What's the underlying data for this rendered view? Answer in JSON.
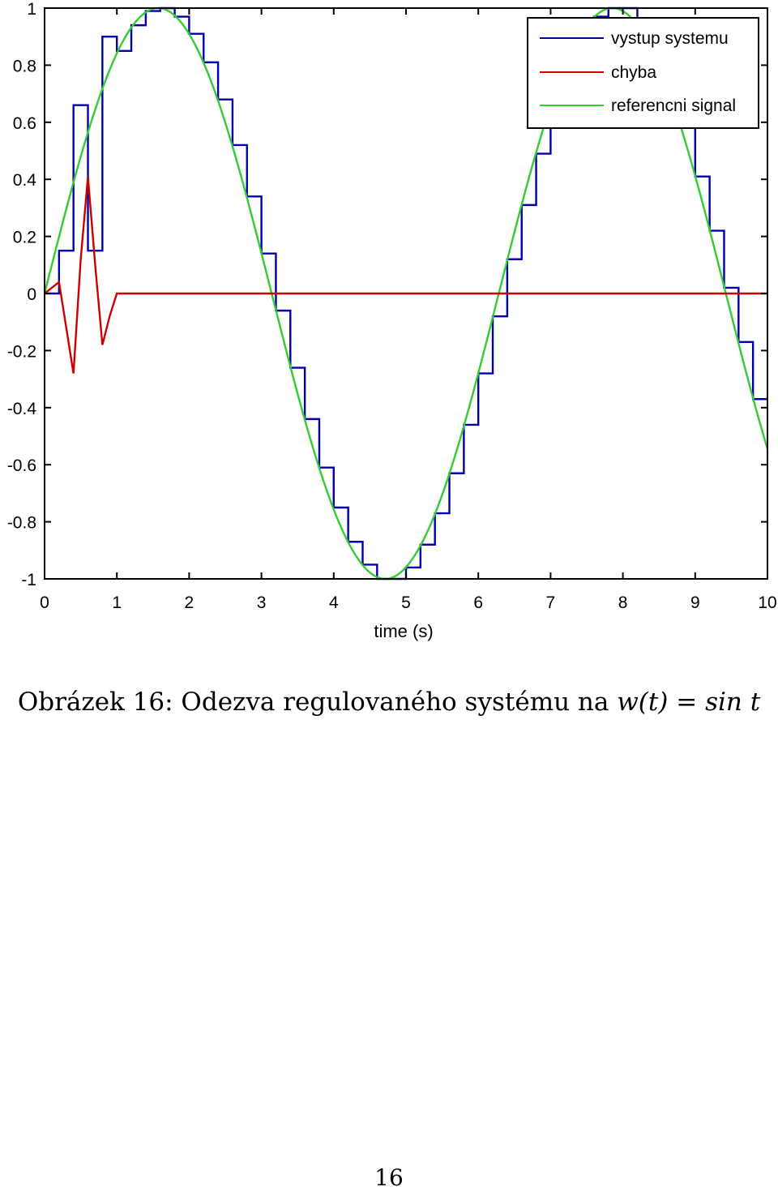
{
  "chart_data": {
    "type": "line",
    "title": "",
    "xlabel": "time (s)",
    "ylabel": "",
    "xlim": [
      0,
      10
    ],
    "ylim": [
      -1,
      1
    ],
    "x_ticks": [
      0,
      1,
      2,
      3,
      4,
      5,
      6,
      7,
      8,
      9,
      10
    ],
    "y_ticks": [
      1,
      0.8,
      0.6,
      0.4,
      0.2,
      0,
      -0.2,
      -0.4,
      -0.6,
      -0.8,
      -1
    ],
    "x_tick_labels": [
      "0",
      "1",
      "2",
      "3",
      "4",
      "5",
      "6",
      "7",
      "8",
      "9",
      "10"
    ],
    "y_tick_labels": [
      "1",
      "0.8",
      "0.6",
      "0.4",
      "0.2",
      "0",
      "-0.2",
      "-0.4",
      "-0.6",
      "-0.8",
      "-1"
    ],
    "grid": false,
    "legend_position": "top-right",
    "series": [
      {
        "name": "vystup systemu",
        "color": "#0000aa",
        "style": "step",
        "x": [
          0,
          0.2,
          0.4,
          0.6,
          0.8,
          1.0,
          1.2,
          1.4,
          1.6,
          1.8,
          2.0,
          2.2,
          2.4,
          2.6,
          2.8,
          3.0,
          3.2,
          3.4,
          3.6,
          3.8,
          4.0,
          4.2,
          4.4,
          4.6,
          4.8,
          5.0,
          5.2,
          5.4,
          5.6,
          5.8,
          6.0,
          6.2,
          6.4,
          6.6,
          6.8,
          7.0,
          7.2,
          7.4,
          7.6,
          7.8,
          8.0,
          8.2,
          8.4,
          8.6,
          8.8,
          9.0,
          9.2,
          9.4,
          9.6,
          9.8,
          10.0
        ],
        "y": [
          0,
          0.15,
          0.66,
          0.15,
          0.9,
          0.85,
          0.94,
          0.99,
          1.0,
          0.97,
          0.91,
          0.81,
          0.68,
          0.52,
          0.34,
          0.14,
          -0.06,
          -0.26,
          -0.44,
          -0.61,
          -0.75,
          -0.87,
          -0.95,
          -1.0,
          -1.0,
          -0.96,
          -0.88,
          -0.77,
          -0.63,
          -0.46,
          -0.28,
          -0.08,
          0.12,
          0.31,
          0.49,
          0.65,
          0.79,
          0.9,
          0.97,
          1.0,
          1.0,
          0.94,
          0.85,
          0.73,
          0.58,
          0.41,
          0.22,
          0.02,
          -0.17,
          -0.37,
          -0.37
        ]
      },
      {
        "name": "chyba",
        "color": "#cc0000",
        "style": "line",
        "x": [
          0,
          0.2,
          0.4,
          0.5,
          0.6,
          0.7,
          0.8,
          0.9,
          1.0,
          1.2,
          10
        ],
        "y": [
          0,
          0.04,
          -0.28,
          0.12,
          0.41,
          0.1,
          -0.18,
          -0.08,
          0,
          0,
          0
        ]
      },
      {
        "name": "referencni signal",
        "color": "#33cc33",
        "style": "function",
        "function": "sin",
        "x": [
          0,
          10
        ]
      }
    ]
  },
  "caption": {
    "prefix": "Obrázek 16: Odezva regulovaného systému na",
    "math": "w(t) = sin t"
  },
  "page_number": "16"
}
